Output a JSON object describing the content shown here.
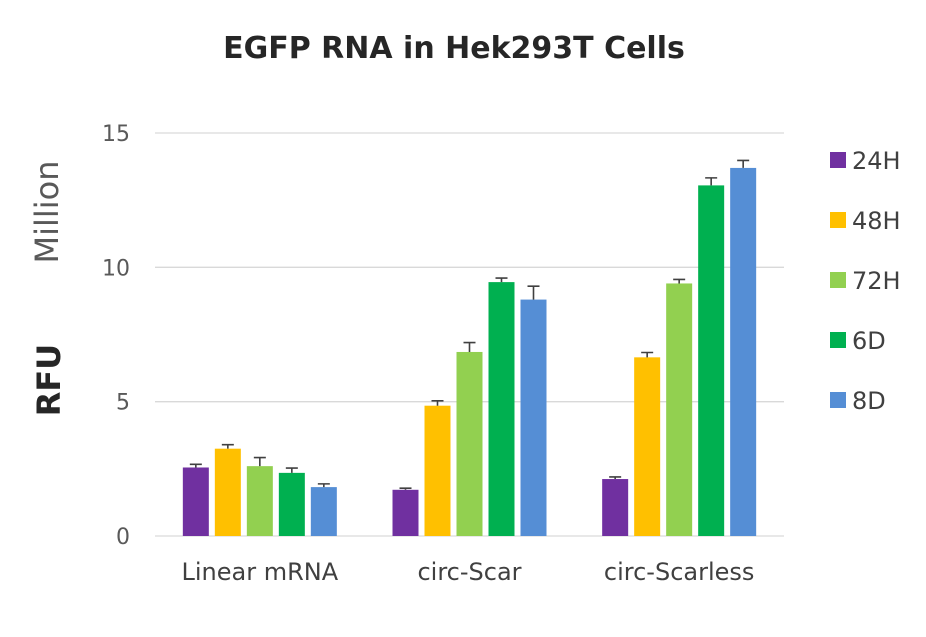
{
  "chart_data": {
    "type": "bar",
    "title": "EGFP RNA in Hek293T Cells",
    "ylabel_main": "RFU",
    "ylabel_unit": "Million",
    "ylim": [
      0,
      15
    ],
    "yticks": [
      0,
      5,
      10,
      15
    ],
    "grid": true,
    "legend_position": "right",
    "categories": [
      "Linear mRNA",
      "circ-Scar",
      "circ-Scarless"
    ],
    "series": [
      {
        "name": "24H",
        "color": "#7030a0",
        "values": [
          2.55,
          1.72,
          2.12
        ],
        "errors": [
          0.12,
          0.06,
          0.08
        ]
      },
      {
        "name": "48H",
        "color": "#ffc000",
        "values": [
          3.25,
          4.85,
          6.65
        ],
        "errors": [
          0.15,
          0.18,
          0.18
        ]
      },
      {
        "name": "72H",
        "color": "#92d050",
        "values": [
          2.6,
          6.85,
          9.4
        ],
        "errors": [
          0.32,
          0.35,
          0.15
        ]
      },
      {
        "name": "6D",
        "color": "#00b050",
        "values": [
          2.35,
          9.45,
          13.05
        ],
        "errors": [
          0.18,
          0.15,
          0.28
        ]
      },
      {
        "name": "8D",
        "color": "#558ed5",
        "values": [
          1.82,
          8.8,
          13.7
        ],
        "errors": [
          0.12,
          0.5,
          0.28
        ]
      }
    ]
  }
}
